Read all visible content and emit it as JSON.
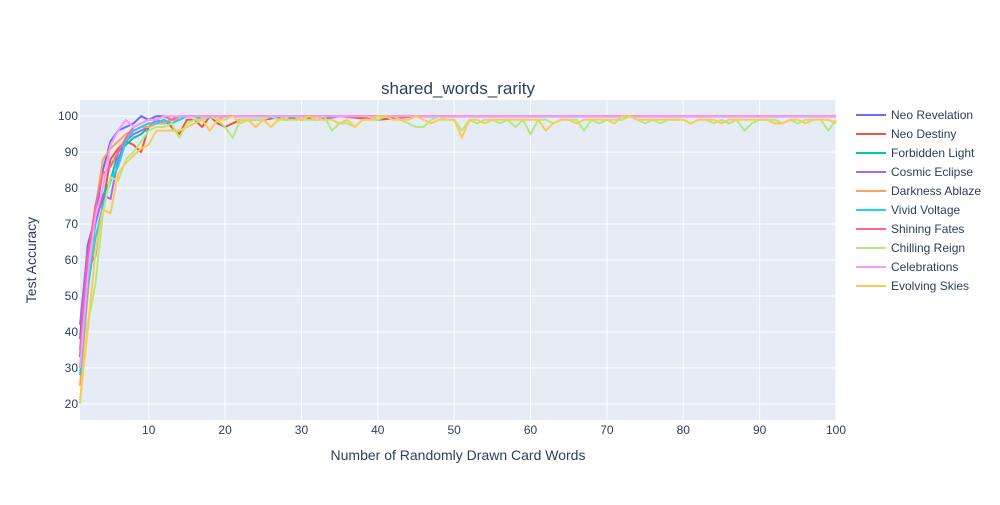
{
  "chart_data": {
    "type": "line",
    "title": "shared_words_rarity",
    "xlabel": "Number of Randomly Drawn Card Words",
    "ylabel": "Test Accuracy",
    "xlim": [
      1,
      100
    ],
    "ylim": [
      15.5,
      104.5
    ],
    "xticks": [
      10,
      20,
      30,
      40,
      50,
      60,
      70,
      80,
      90,
      100
    ],
    "yticks": [
      20,
      30,
      40,
      50,
      60,
      70,
      80,
      90,
      100
    ],
    "grid": true,
    "legend_position": "right",
    "series": [
      {
        "name": "Neo Revelation",
        "color": "#636efa",
        "x": [
          1,
          2,
          3,
          4,
          5,
          6,
          7,
          8,
          9,
          10,
          11,
          12,
          13,
          14,
          15,
          16,
          17,
          18,
          19,
          20,
          22,
          25,
          28,
          30,
          32,
          35,
          40,
          45,
          50,
          55,
          60,
          65,
          70,
          75,
          80,
          85,
          90,
          95,
          100
        ],
        "y": [
          38,
          64,
          72,
          85,
          93,
          96,
          97,
          98,
          100,
          99,
          100,
          100,
          99,
          100,
          100,
          100,
          100,
          100,
          100,
          100,
          100,
          100,
          99,
          100,
          99,
          100,
          100,
          100,
          100,
          100,
          100,
          100,
          100,
          100,
          100,
          100,
          100,
          100,
          100
        ]
      },
      {
        "name": "Neo Destiny",
        "color": "#ef553b",
        "x": [
          1,
          2,
          3,
          4,
          5,
          6,
          7,
          8,
          9,
          10,
          11,
          12,
          13,
          14,
          15,
          16,
          17,
          18,
          19,
          20,
          22,
          25,
          28,
          30,
          32,
          35,
          40,
          45,
          50,
          55,
          60,
          65,
          70,
          75,
          80,
          85,
          90,
          95,
          100
        ],
        "y": [
          33,
          58,
          61,
          76,
          88,
          91,
          93,
          92,
          90,
          97,
          98,
          99,
          97,
          95,
          99,
          99,
          97,
          100,
          98,
          97,
          99,
          99,
          100,
          99,
          100,
          100,
          99,
          100,
          100,
          100,
          100,
          100,
          100,
          100,
          100,
          100,
          100,
          100,
          100
        ]
      },
      {
        "name": "Forbidden Light",
        "color": "#00cc96",
        "x": [
          1,
          2,
          3,
          4,
          5,
          6,
          7,
          8,
          9,
          10,
          11,
          12,
          13,
          14,
          15,
          16,
          17,
          18,
          19,
          20,
          22,
          25,
          28,
          30,
          32,
          35,
          40,
          45,
          50,
          55,
          60,
          65,
          70,
          75,
          80,
          85,
          90,
          95,
          100
        ],
        "y": [
          30,
          55,
          70,
          78,
          82,
          90,
          92,
          94,
          95,
          97,
          98,
          98,
          99,
          99,
          100,
          100,
          99,
          100,
          100,
          100,
          100,
          100,
          99,
          100,
          100,
          100,
          100,
          100,
          100,
          100,
          100,
          100,
          100,
          100,
          100,
          100,
          100,
          100,
          100
        ]
      },
      {
        "name": "Cosmic Eclipse",
        "color": "#ab63fa",
        "x": [
          1,
          2,
          3,
          4,
          5,
          6,
          7,
          8,
          9,
          10,
          11,
          12,
          13,
          14,
          15,
          16,
          17,
          18,
          19,
          20,
          22,
          25,
          28,
          30,
          32,
          35,
          40,
          45,
          50,
          55,
          60,
          65,
          70,
          75,
          80,
          85,
          90,
          95,
          100
        ],
        "y": [
          42,
          63,
          70,
          78,
          77,
          88,
          93,
          95,
          96,
          97,
          99,
          98,
          99,
          100,
          100,
          100,
          100,
          100,
          100,
          100,
          100,
          100,
          100,
          100,
          100,
          100,
          100,
          100,
          100,
          100,
          100,
          100,
          100,
          100,
          100,
          100,
          100,
          100,
          100
        ]
      },
      {
        "name": "Darkness Ablaze",
        "color": "#ffa15a",
        "x": [
          1,
          2,
          3,
          4,
          5,
          6,
          7,
          8,
          9,
          10,
          11,
          12,
          13,
          14,
          15,
          16,
          17,
          18,
          19,
          20,
          22,
          25,
          28,
          30,
          32,
          35,
          40,
          45,
          50,
          55,
          60,
          65,
          70,
          75,
          80,
          85,
          90,
          95,
          100
        ],
        "y": [
          25,
          50,
          74,
          88,
          91,
          93,
          95,
          96,
          97,
          97,
          98,
          98,
          99,
          99,
          100,
          100,
          100,
          100,
          99,
          100,
          100,
          100,
          100,
          100,
          100,
          100,
          100,
          100,
          100,
          100,
          100,
          100,
          100,
          100,
          100,
          100,
          100,
          100,
          100
        ]
      },
      {
        "name": "Vivid Voltage",
        "color": "#19d3f3",
        "x": [
          1,
          2,
          3,
          4,
          5,
          6,
          7,
          8,
          9,
          10,
          11,
          12,
          13,
          14,
          15,
          16,
          17,
          18,
          19,
          20,
          22,
          25,
          28,
          30,
          32,
          35,
          40,
          45,
          50,
          55,
          60,
          65,
          70,
          75,
          80,
          85,
          90,
          95,
          100
        ],
        "y": [
          28,
          52,
          66,
          75,
          82,
          86,
          93,
          96,
          97,
          98,
          98,
          99,
          98,
          99,
          100,
          100,
          99,
          100,
          100,
          100,
          100,
          100,
          100,
          100,
          100,
          100,
          100,
          100,
          100,
          100,
          100,
          100,
          100,
          100,
          100,
          100,
          100,
          100,
          100
        ]
      },
      {
        "name": "Shining Fates",
        "color": "#ff6692",
        "x": [
          1,
          2,
          3,
          4,
          5,
          6,
          7,
          8,
          9,
          10,
          11,
          12,
          13,
          14,
          15,
          16,
          17,
          18,
          19,
          20,
          22,
          25,
          28,
          30,
          32,
          35,
          40,
          45,
          50,
          55,
          60,
          65,
          70,
          75,
          80,
          85,
          90,
          95,
          100
        ],
        "y": [
          35,
          60,
          75,
          84,
          86,
          90,
          94,
          97,
          98,
          99,
          99,
          100,
          99,
          100,
          100,
          100,
          100,
          100,
          100,
          100,
          100,
          100,
          100,
          100,
          100,
          100,
          100,
          100,
          100,
          100,
          100,
          100,
          100,
          100,
          100,
          100,
          100,
          100,
          100
        ]
      },
      {
        "name": "Chilling Reign",
        "color": "#b6e880",
        "x": [
          1,
          2,
          3,
          4,
          5,
          6,
          7,
          8,
          9,
          10,
          11,
          12,
          13,
          14,
          15,
          16,
          17,
          18,
          19,
          20,
          21,
          22,
          23,
          24,
          25,
          26,
          27,
          28,
          29,
          30,
          31,
          32,
          33,
          34,
          35,
          36,
          37,
          38,
          39,
          40,
          41,
          42,
          43,
          44,
          45,
          46,
          47,
          48,
          49,
          50,
          51,
          52,
          53,
          54,
          55,
          56,
          57,
          58,
          59,
          60,
          61,
          62,
          63,
          64,
          65,
          66,
          67,
          68,
          69,
          70,
          71,
          72,
          73,
          74,
          75,
          76,
          77,
          78,
          79,
          80,
          81,
          82,
          83,
          84,
          85,
          86,
          87,
          88,
          89,
          90,
          91,
          92,
          93,
          94,
          95,
          96,
          97,
          98,
          99,
          100
        ],
        "y": [
          20,
          42,
          53,
          73,
          83,
          82,
          88,
          90,
          93,
          96,
          97,
          97,
          98,
          94,
          98,
          99,
          99,
          100,
          99,
          97,
          94,
          99,
          99,
          99,
          99,
          100,
          99,
          100,
          100,
          99,
          99,
          99,
          100,
          96,
          98,
          98,
          97,
          99,
          99,
          99,
          100,
          100,
          99,
          98,
          97,
          97,
          99,
          100,
          99,
          99,
          96,
          99,
          98,
          99,
          99,
          98,
          99,
          97,
          99,
          95,
          99,
          99,
          98,
          99,
          99,
          99,
          96,
          99,
          98,
          99,
          99,
          99,
          100,
          99,
          98,
          99,
          98,
          99,
          99,
          99,
          98,
          99,
          99,
          98,
          99,
          98,
          99,
          96,
          98,
          99,
          99,
          99,
          98,
          99,
          98,
          99,
          99,
          99,
          96,
          99
        ]
      },
      {
        "name": "Celebrations",
        "color": "#ff97ff",
        "x": [
          1,
          2,
          3,
          4,
          5,
          6,
          7,
          8,
          9,
          10,
          11,
          12,
          13,
          14,
          15,
          16,
          17,
          18,
          19,
          20,
          22,
          25,
          28,
          30,
          32,
          35,
          40,
          45,
          50,
          55,
          60,
          65,
          70,
          75,
          80,
          85,
          90,
          95,
          100
        ],
        "y": [
          30,
          55,
          72,
          80,
          92,
          96,
          99,
          97,
          98,
          99,
          99,
          100,
          100,
          100,
          100,
          100,
          100,
          100,
          100,
          100,
          100,
          100,
          100,
          100,
          100,
          100,
          100,
          100,
          100,
          100,
          100,
          100,
          100,
          100,
          100,
          100,
          100,
          100,
          100
        ]
      },
      {
        "name": "Evolving Skies",
        "color": "#fecb52",
        "x": [
          1,
          2,
          3,
          4,
          5,
          6,
          7,
          8,
          9,
          10,
          11,
          12,
          13,
          14,
          15,
          16,
          17,
          18,
          19,
          20,
          21,
          22,
          23,
          24,
          25,
          26,
          27,
          28,
          29,
          30,
          31,
          32,
          33,
          34,
          35,
          36,
          37,
          38,
          39,
          40,
          41,
          42,
          43,
          44,
          45,
          46,
          47,
          48,
          49,
          50,
          51,
          52,
          53,
          54,
          55,
          56,
          57,
          58,
          59,
          60,
          61,
          62,
          63,
          64,
          65,
          66,
          67,
          68,
          69,
          70,
          71,
          72,
          73,
          74,
          75,
          76,
          77,
          78,
          79,
          80,
          81,
          82,
          83,
          84,
          85,
          86,
          87,
          88,
          89,
          90,
          91,
          92,
          93,
          94,
          95,
          96,
          97,
          98,
          99,
          100
        ],
        "y": [
          21,
          40,
          62,
          74,
          73,
          84,
          87,
          89,
          91,
          92,
          96,
          96,
          96,
          96,
          97,
          98,
          99,
          96,
          99,
          99,
          100,
          98,
          99,
          97,
          99,
          97,
          99,
          99,
          99,
          99,
          100,
          99,
          99,
          99,
          98,
          99,
          97,
          99,
          99,
          100,
          100,
          99,
          99,
          99,
          100,
          99,
          98,
          99,
          99,
          99,
          94,
          99,
          99,
          98,
          99,
          99,
          99,
          99,
          99,
          99,
          99,
          96,
          98,
          99,
          99,
          98,
          99,
          99,
          99,
          99,
          98,
          100,
          100,
          99,
          99,
          99,
          99,
          99,
          99,
          99,
          98,
          99,
          99,
          99,
          98,
          99,
          99,
          99,
          99,
          99,
          99,
          98,
          98,
          99,
          99,
          98,
          99,
          99,
          99,
          98
        ]
      }
    ]
  }
}
